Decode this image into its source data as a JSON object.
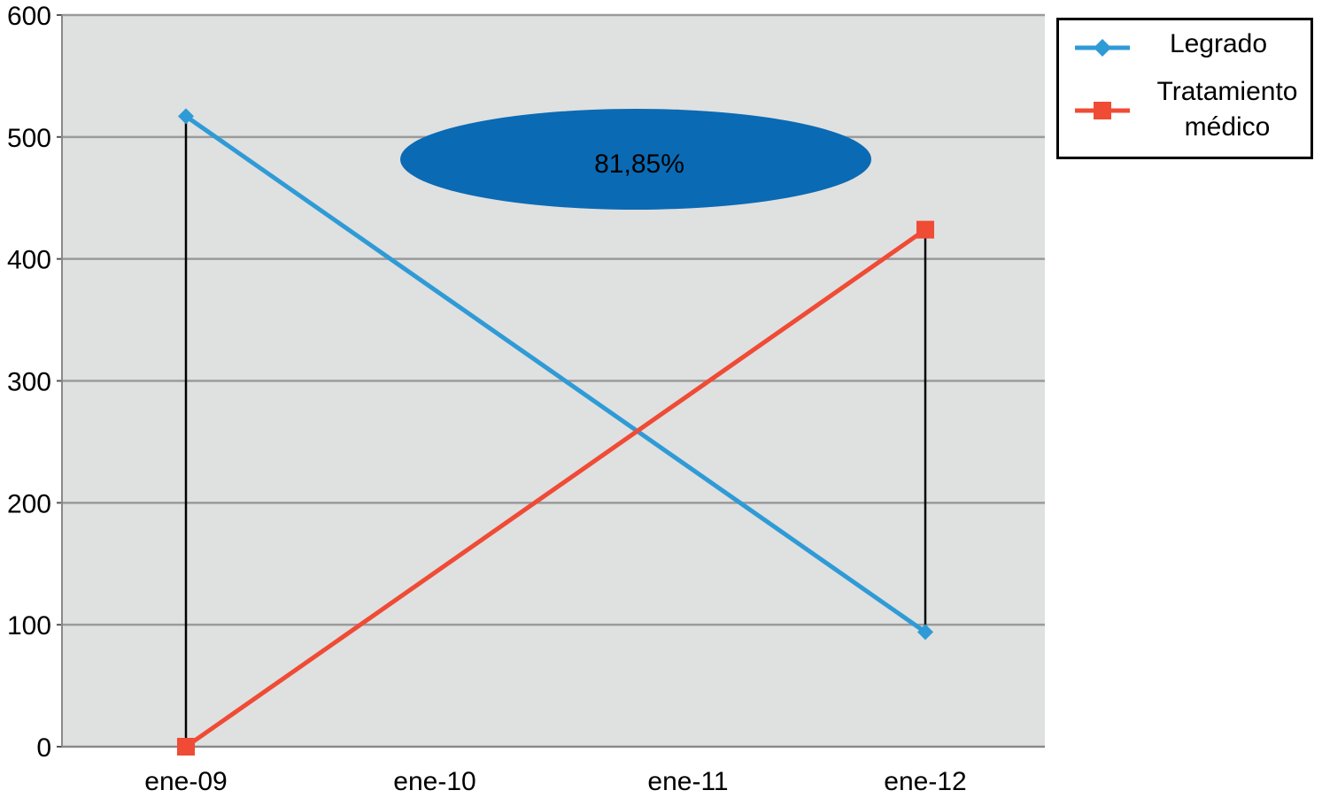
{
  "chart_data": {
    "type": "line",
    "categories": [
      "ene-09",
      "ene-10",
      "ene-11",
      "ene-12"
    ],
    "series": [
      {
        "name": "Legrado",
        "color": "#2f9bd6",
        "marker": "diamond",
        "points": [
          {
            "x": "ene-09",
            "y": 517
          },
          {
            "x": "ene-12",
            "y": 94
          }
        ]
      },
      {
        "name": "Tratamiento médico",
        "color": "#ef4b35",
        "marker": "square",
        "points": [
          {
            "x": "ene-09",
            "y": 0
          },
          {
            "x": "ene-12",
            "y": 424
          }
        ]
      }
    ],
    "drop_lines": [
      {
        "x": "ene-09",
        "from": 0,
        "to": 517
      },
      {
        "x": "ene-12",
        "from": 94,
        "to": 424
      }
    ],
    "annotation": {
      "text": "81,85%",
      "color": "#0b6ab4"
    },
    "ylim": [
      0,
      600
    ],
    "yticks": [
      0,
      100,
      200,
      300,
      400,
      500,
      600
    ],
    "grid": true,
    "plot_background": "#dfe0e0",
    "gridline_color": "#9a9a9a",
    "legend_position": "top-right",
    "title": "",
    "xlabel": "",
    "ylabel": ""
  },
  "legend": {
    "items": [
      {
        "label_line1": "Legrado",
        "label_line2": ""
      },
      {
        "label_line1": "Tratamiento",
        "label_line2": "médico"
      }
    ]
  }
}
